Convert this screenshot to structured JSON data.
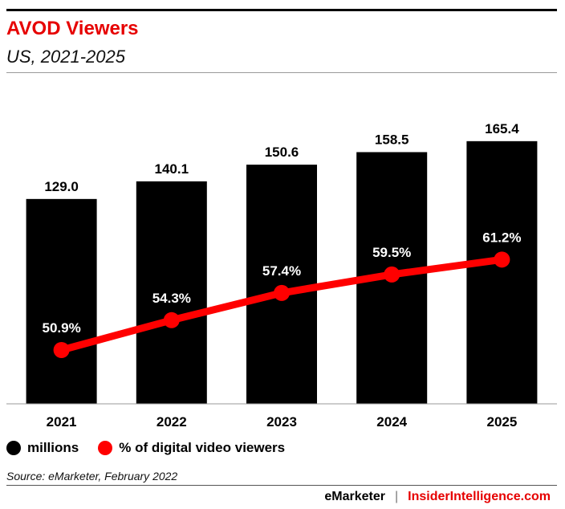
{
  "header": {
    "title": "AVOD Viewers",
    "subtitle": "US, 2021-2025"
  },
  "colors": {
    "bar": "#000000",
    "line": "#ff0000",
    "title": "#e60000"
  },
  "chart_data": {
    "type": "bar",
    "categories": [
      "2021",
      "2022",
      "2023",
      "2024",
      "2025"
    ],
    "series": [
      {
        "name": "millions",
        "type": "bar",
        "values": [
          129.0,
          140.1,
          150.6,
          158.5,
          165.4
        ],
        "labels": [
          "129.0",
          "140.1",
          "150.6",
          "158.5",
          "165.4"
        ]
      },
      {
        "name": "% of digital video viewers",
        "type": "line",
        "values": [
          50.9,
          54.3,
          57.4,
          59.5,
          61.2
        ],
        "labels": [
          "50.9%",
          "54.3%",
          "57.4%",
          "59.5%",
          "61.2%"
        ]
      }
    ],
    "legend_position": "bottom-left",
    "grid": false
  },
  "legend": {
    "items": [
      {
        "label": "millions",
        "color": "#000000"
      },
      {
        "label": "% of digital video viewers",
        "color": "#ff0000"
      }
    ]
  },
  "source": "Source: eMarketer, February 2022",
  "footer": {
    "brand_left": "eMarketer",
    "separator": "|",
    "brand_right": "InsiderIntelligence.com"
  }
}
